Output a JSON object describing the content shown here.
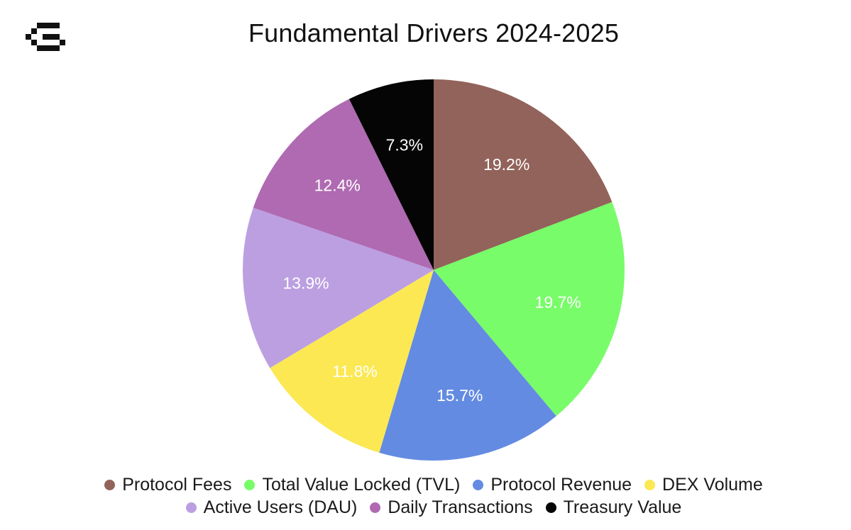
{
  "logo": {
    "icon": "pixel-g-logo-icon"
  },
  "chart_data": {
    "type": "pie",
    "title": "Fundamental Drivers 2024-2025",
    "start_angle_deg": 0,
    "direction": "clockwise",
    "legend_position": "bottom",
    "slices": [
      {
        "name": "Protocol Fees",
        "value": 19.2,
        "label": "19.2%",
        "color": "#92635A"
      },
      {
        "name": "Total Value Locked (TVL)",
        "value": 19.7,
        "label": "19.7%",
        "color": "#78FC69"
      },
      {
        "name": "Protocol Revenue",
        "value": 15.7,
        "label": "15.7%",
        "color": "#638BE2"
      },
      {
        "name": "DEX Volume",
        "value": 11.8,
        "label": "11.8%",
        "color": "#FBE853"
      },
      {
        "name": "Active Users (DAU)",
        "value": 13.9,
        "label": "13.9%",
        "color": "#BC9FE1"
      },
      {
        "name": "Daily Transactions",
        "value": 12.4,
        "label": "12.4%",
        "color": "#AF6AB2"
      },
      {
        "name": "Treasury Value",
        "value": 7.3,
        "label": "7.3%",
        "color": "#050505"
      }
    ]
  }
}
